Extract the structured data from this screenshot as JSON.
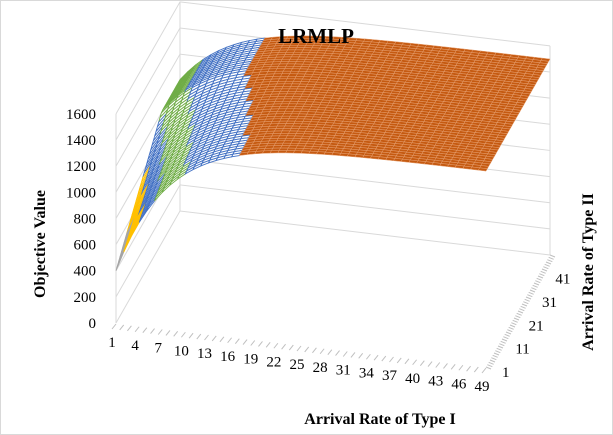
{
  "chart_data": {
    "type": "surface",
    "title": "LRMLP",
    "xlabel": "Arrival Rate of Type I",
    "ylabel": "Arrival Rate of Type II",
    "zlabel": "Objective Value",
    "x_ticks": [
      "1",
      "4",
      "7",
      "10",
      "13",
      "16",
      "19",
      "22",
      "25",
      "28",
      "31",
      "34",
      "37",
      "40",
      "43",
      "46",
      "49"
    ],
    "y_ticks": [
      "1",
      "11",
      "21",
      "31",
      "41"
    ],
    "z_ticks": [
      "0",
      "200",
      "400",
      "600",
      "800",
      "1000",
      "1200",
      "1400",
      "1600"
    ],
    "zlim": [
      0,
      1600
    ],
    "xlim": [
      1,
      49
    ],
    "ylim": [
      1,
      49
    ],
    "bands": [
      {
        "range": [
          0,
          200
        ],
        "color": "#a5a5a5"
      },
      {
        "range": [
          200,
          400
        ],
        "color": "#a5a5a5"
      },
      {
        "range": [
          400,
          600
        ],
        "color": "#a5a5a5"
      },
      {
        "range": [
          600,
          800
        ],
        "color": "#ffc000"
      },
      {
        "range": [
          800,
          1000
        ],
        "color": "#4472c4"
      },
      {
        "range": [
          1000,
          1200
        ],
        "color": "#70ad47"
      },
      {
        "range": [
          1200,
          1400
        ],
        "color": "#4472c4"
      },
      {
        "range": [
          1400,
          1600
        ],
        "color": "#c55a11"
      }
    ],
    "surface_model": {
      "plateau": 1500,
      "min_at_origin": 400
    },
    "grid": true,
    "legend": "none"
  }
}
